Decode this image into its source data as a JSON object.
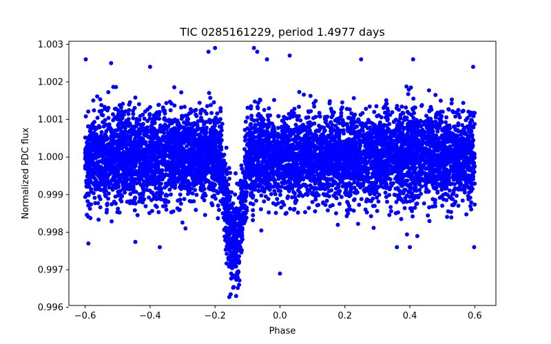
{
  "chart_data": {
    "type": "scatter",
    "title": "TIC 0285161229, period 1.4977 days",
    "xlabel": "Phase",
    "ylabel": "Normalized PDC flux",
    "xlim": [
      -0.65,
      0.665
    ],
    "ylim": [
      0.99605,
      1.00308
    ],
    "xticks": [
      -0.6,
      -0.4,
      -0.2,
      0.0,
      0.2,
      0.4,
      0.6
    ],
    "xtick_labels": [
      "−0.6",
      "−0.4",
      "−0.2",
      "0.0",
      "0.2",
      "0.4",
      "0.6"
    ],
    "yticks": [
      0.996,
      0.997,
      0.998,
      0.999,
      1.0,
      1.001,
      1.002,
      1.003
    ],
    "ytick_labels": [
      "0.996",
      "0.997",
      "0.998",
      "0.999",
      "1.000",
      "1.001",
      "1.002",
      "1.003"
    ],
    "grid": false,
    "series": [
      {
        "name": "PDC flux",
        "color": "#0000ff",
        "marker": "circle",
        "phase_range": [
          -0.6,
          0.6
        ],
        "baseline": 1.0,
        "scatter_sigma": 0.00058,
        "transit_center": -0.14,
        "transit_depth": 0.0023,
        "transit_halfwidth": 0.04,
        "n_points": 7000,
        "highlighted_points": [
          {
            "x": -0.598,
            "y": 1.0026
          },
          {
            "x": -0.59,
            "y": 0.9977
          },
          {
            "x": -0.52,
            "y": 1.0025
          },
          {
            "x": -0.4,
            "y": 1.0024
          },
          {
            "x": -0.2,
            "y": 1.0029
          },
          {
            "x": -0.22,
            "y": 1.0028
          },
          {
            "x": -0.08,
            "y": 1.0029
          },
          {
            "x": -0.07,
            "y": 1.0028
          },
          {
            "x": -0.04,
            "y": 1.0026
          },
          {
            "x": 0.03,
            "y": 1.0027
          },
          {
            "x": 0.25,
            "y": 1.0026
          },
          {
            "x": 0.41,
            "y": 1.0026
          },
          {
            "x": 0.595,
            "y": 1.0024
          },
          {
            "x": 0.598,
            "y": 0.9976
          },
          {
            "x": -0.135,
            "y": 0.9963
          },
          {
            "x": -0.126,
            "y": 0.9966
          },
          {
            "x": -0.15,
            "y": 0.9969
          },
          {
            "x": 0.0,
            "y": 0.9969
          },
          {
            "x": -0.37,
            "y": 0.9976
          },
          {
            "x": 0.36,
            "y": 0.9976
          },
          {
            "x": 0.4,
            "y": 0.9976
          }
        ]
      }
    ]
  }
}
